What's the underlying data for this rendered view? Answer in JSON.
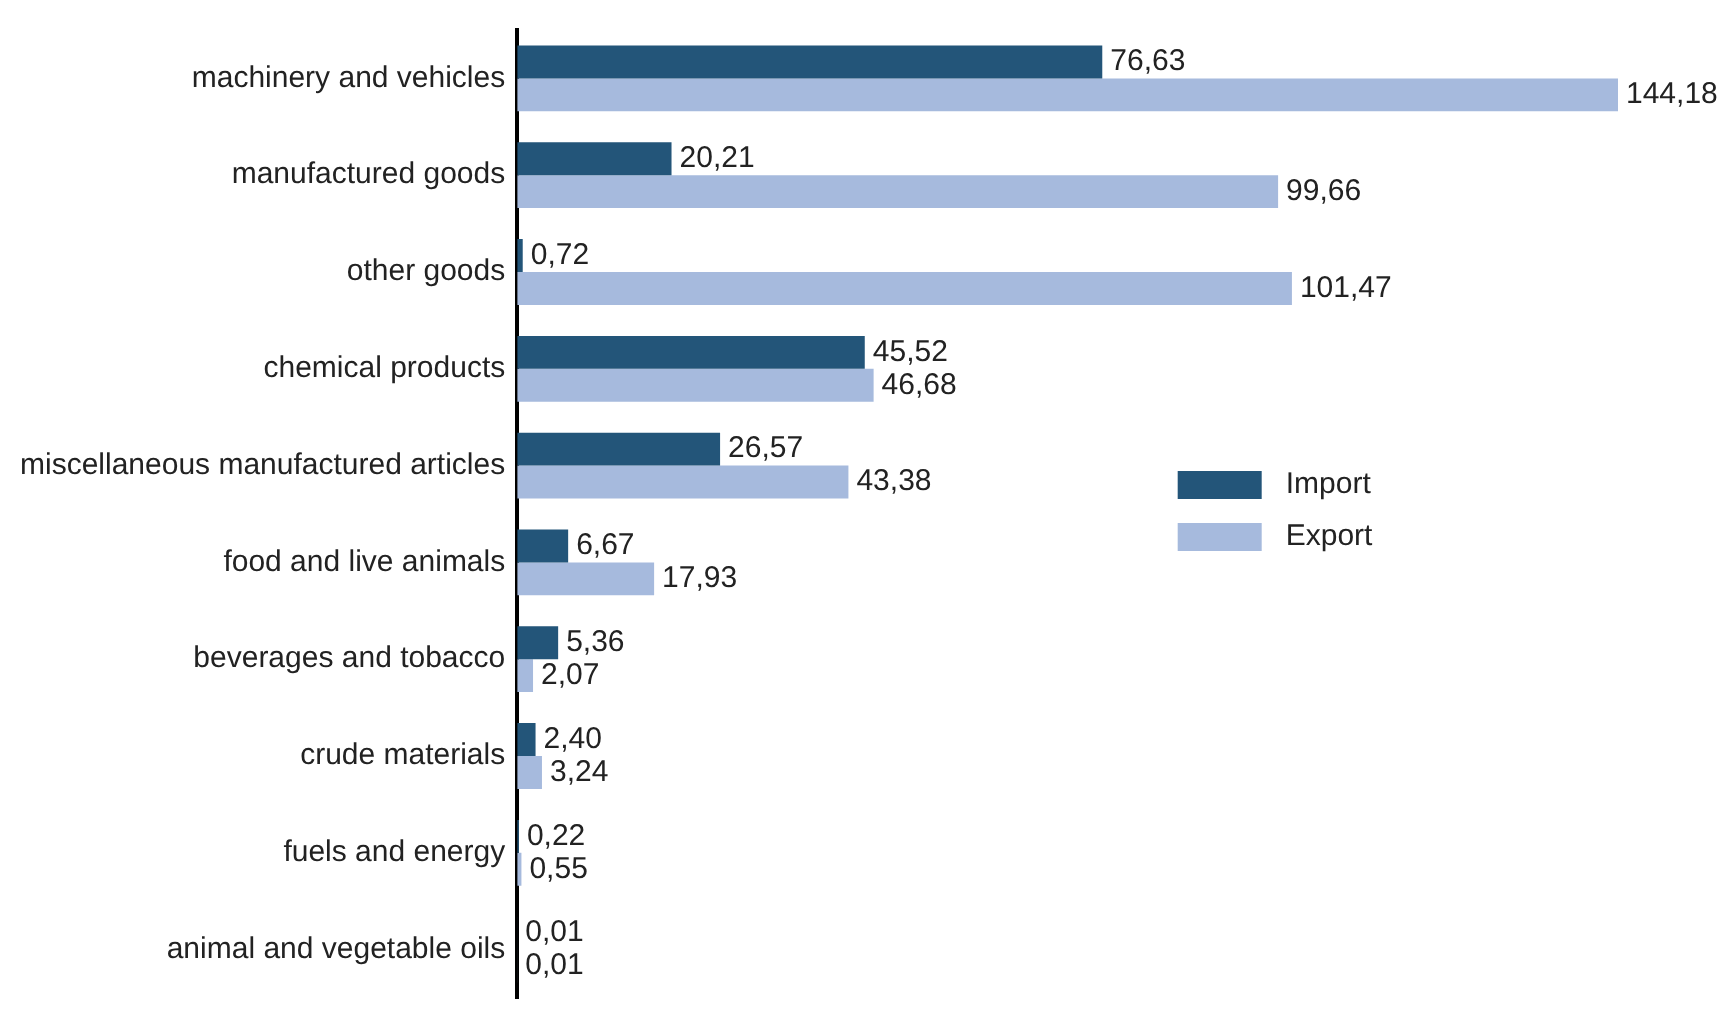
{
  "chart_data": {
    "type": "bar",
    "orientation": "horizontal",
    "categories": [
      "machinery and vehicles",
      "manufactured goods",
      "other goods",
      "chemical products",
      "miscellaneous manufactured articles",
      "food and live animals",
      "beverages and tobacco",
      "crude materials",
      "fuels and energy",
      "animal and vegetable oils"
    ],
    "series": [
      {
        "name": "Import",
        "color": "#235579",
        "values": [
          76.63,
          20.21,
          0.72,
          45.52,
          26.57,
          6.67,
          5.36,
          2.4,
          0.22,
          0.01
        ],
        "value_labels": [
          "76,63",
          "20,21",
          "0,72",
          "45,52",
          "26,57",
          "6,67",
          "5,36",
          "2,40",
          "0,22",
          "0,01"
        ]
      },
      {
        "name": "Export",
        "color": "#a6badd",
        "values": [
          144.18,
          99.66,
          101.47,
          46.68,
          43.38,
          17.93,
          2.07,
          3.24,
          0.55,
          0.01
        ],
        "value_labels": [
          "144,18",
          "99,66",
          "101,47",
          "46,68",
          "43,38",
          "17,93",
          "2,07",
          "3,24",
          "0,55",
          "0,01"
        ]
      }
    ],
    "xlim": [
      0,
      144.18
    ],
    "legend": "right"
  }
}
